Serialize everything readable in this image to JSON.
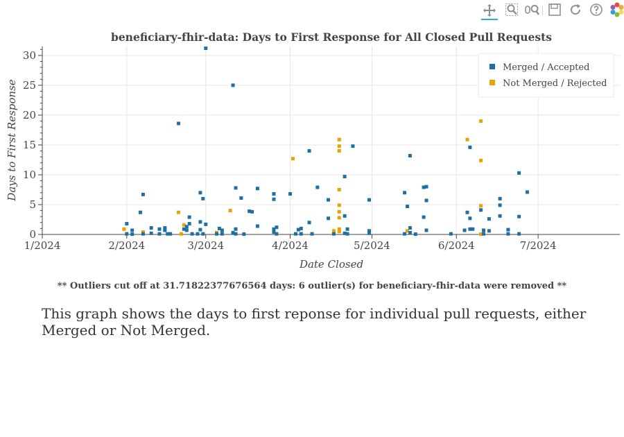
{
  "toolbar": {
    "tools": [
      {
        "name": "pan-tool",
        "icon": "pan-icon",
        "active": true
      },
      {
        "name": "box-zoom-tool",
        "icon": "box-zoom-icon",
        "active": false
      },
      {
        "name": "wheel-zoom-tool",
        "icon": "wheel-zoom-icon",
        "active": false
      },
      {
        "name": "save-tool",
        "icon": "save-icon",
        "active": false
      },
      {
        "name": "reset-tool",
        "icon": "reset-icon",
        "active": false
      },
      {
        "name": "help-tool",
        "icon": "help-icon",
        "active": false
      },
      {
        "name": "bokeh-logo",
        "icon": "bokeh-logo-icon",
        "active": false
      }
    ],
    "accent_color": "#26aae1"
  },
  "chart_data": {
    "type": "scatter",
    "title": "beneficiary-fhir-data: Days to First Response for All Closed Pull Requests",
    "xlabel": "Date Closed",
    "ylabel": "Days to First Response",
    "xlim": [
      "2024-01-01",
      "2024-07-31"
    ],
    "ylim": [
      0,
      31.5
    ],
    "x_ticks": [
      {
        "date": "2024-01-01",
        "label": "1/2024"
      },
      {
        "date": "2024-02-01",
        "label": "2/2024"
      },
      {
        "date": "2024-03-01",
        "label": "3/2024"
      },
      {
        "date": "2024-04-01",
        "label": "4/2024"
      },
      {
        "date": "2024-05-01",
        "label": "5/2024"
      },
      {
        "date": "2024-06-01",
        "label": "6/2024"
      },
      {
        "date": "2024-07-01",
        "label": "7/2024"
      }
    ],
    "y_ticks": [
      0,
      5,
      10,
      15,
      20,
      25,
      30
    ],
    "grid": true,
    "legend_position": "top-right",
    "series": [
      {
        "name": "Merged / Accepted",
        "color": "#1f6fa3",
        "points": [
          [
            "2024-02-01",
            1.8
          ],
          [
            "2024-02-01",
            0.1
          ],
          [
            "2024-02-03",
            0.7
          ],
          [
            "2024-02-03",
            0.05
          ],
          [
            "2024-02-06",
            3.7
          ],
          [
            "2024-02-07",
            6.7
          ],
          [
            "2024-02-07",
            0.1
          ],
          [
            "2024-02-10",
            1.1
          ],
          [
            "2024-02-10",
            0.2
          ],
          [
            "2024-02-13",
            0.9
          ],
          [
            "2024-02-13",
            0.1
          ],
          [
            "2024-02-15",
            1.1
          ],
          [
            "2024-02-15",
            0.7
          ],
          [
            "2024-02-16",
            0.1
          ],
          [
            "2024-02-17",
            0.1
          ],
          [
            "2024-02-20",
            18.6
          ],
          [
            "2024-02-22",
            0.9
          ],
          [
            "2024-02-23",
            1.3
          ],
          [
            "2024-02-23",
            0.7
          ],
          [
            "2024-02-24",
            2.9
          ],
          [
            "2024-02-24",
            1.8
          ],
          [
            "2024-02-25",
            0.1
          ],
          [
            "2024-02-27",
            0.1
          ],
          [
            "2024-02-28",
            7.0
          ],
          [
            "2024-02-28",
            2.1
          ],
          [
            "2024-02-28",
            0.8
          ],
          [
            "2024-02-29",
            6.0
          ],
          [
            "2024-02-29",
            0.1
          ],
          [
            "2024-03-01",
            31.2
          ],
          [
            "2024-03-01",
            1.7
          ],
          [
            "2024-03-05",
            0.1
          ],
          [
            "2024-03-06",
            1.0
          ],
          [
            "2024-03-07",
            0.7
          ],
          [
            "2024-03-07",
            0.1
          ],
          [
            "2024-03-11",
            25.0
          ],
          [
            "2024-03-11",
            0.3
          ],
          [
            "2024-03-12",
            7.8
          ],
          [
            "2024-03-12",
            0.9
          ],
          [
            "2024-03-12",
            0.1
          ],
          [
            "2024-03-14",
            6.1
          ],
          [
            "2024-03-15",
            0.05
          ],
          [
            "2024-03-17",
            3.9
          ],
          [
            "2024-03-18",
            3.8
          ],
          [
            "2024-03-20",
            7.7
          ],
          [
            "2024-03-20",
            1.4
          ],
          [
            "2024-03-26",
            6.8
          ],
          [
            "2024-03-26",
            5.9
          ],
          [
            "2024-03-26",
            0.9
          ],
          [
            "2024-03-26",
            0.4
          ],
          [
            "2024-03-27",
            1.2
          ],
          [
            "2024-03-27",
            0.1
          ],
          [
            "2024-04-01",
            6.8
          ],
          [
            "2024-04-03",
            0.1
          ],
          [
            "2024-04-04",
            0.8
          ],
          [
            "2024-04-05",
            1.0
          ],
          [
            "2024-04-05",
            0.1
          ],
          [
            "2024-04-08",
            14.0
          ],
          [
            "2024-04-08",
            2.0
          ],
          [
            "2024-04-09",
            0.1
          ],
          [
            "2024-04-11",
            7.9
          ],
          [
            "2024-04-15",
            5.8
          ],
          [
            "2024-04-15",
            2.7
          ],
          [
            "2024-04-17",
            0.1
          ],
          [
            "2024-04-21",
            9.7
          ],
          [
            "2024-04-21",
            3.1
          ],
          [
            "2024-04-21",
            0.2
          ],
          [
            "2024-04-22",
            0.9
          ],
          [
            "2024-04-22",
            0.1
          ],
          [
            "2024-04-24",
            14.8
          ],
          [
            "2024-04-30",
            5.8
          ],
          [
            "2024-04-30",
            0.6
          ],
          [
            "2024-04-30",
            0.2
          ],
          [
            "2024-05-13",
            7.0
          ],
          [
            "2024-05-13",
            0.1
          ],
          [
            "2024-05-14",
            4.7
          ],
          [
            "2024-05-15",
            13.2
          ],
          [
            "2024-05-15",
            1.1
          ],
          [
            "2024-05-15",
            0.3
          ],
          [
            "2024-05-17",
            0.05
          ],
          [
            "2024-05-20",
            7.9
          ],
          [
            "2024-05-20",
            2.9
          ],
          [
            "2024-05-21",
            8.0
          ],
          [
            "2024-05-21",
            5.7
          ],
          [
            "2024-05-21",
            0.7
          ],
          [
            "2024-05-30",
            0.1
          ],
          [
            "2024-06-04",
            0.7
          ],
          [
            "2024-06-05",
            3.7
          ],
          [
            "2024-06-06",
            14.6
          ],
          [
            "2024-06-06",
            2.7
          ],
          [
            "2024-06-06",
            0.9
          ],
          [
            "2024-06-07",
            0.9
          ],
          [
            "2024-06-10",
            4.1
          ],
          [
            "2024-06-11",
            0.7
          ],
          [
            "2024-06-11",
            0.1
          ],
          [
            "2024-06-13",
            2.6
          ],
          [
            "2024-06-13",
            0.6
          ],
          [
            "2024-06-17",
            6.0
          ],
          [
            "2024-06-17",
            4.9
          ],
          [
            "2024-06-17",
            3.1
          ],
          [
            "2024-06-20",
            0.8
          ],
          [
            "2024-06-20",
            0.1
          ],
          [
            "2024-06-24",
            10.3
          ],
          [
            "2024-06-24",
            3.0
          ],
          [
            "2024-06-24",
            0.1
          ],
          [
            "2024-06-27",
            7.1
          ]
        ]
      },
      {
        "name": "Not Merged / Rejected",
        "color": "#e8a202",
        "points": [
          [
            "2024-01-31",
            0.9
          ],
          [
            "2024-02-07",
            0.4
          ],
          [
            "2024-02-20",
            3.7
          ],
          [
            "2024-02-21",
            0.1
          ],
          [
            "2024-02-22",
            1.6
          ],
          [
            "2024-03-05",
            0.3
          ],
          [
            "2024-03-10",
            4.0
          ],
          [
            "2024-04-02",
            12.7
          ],
          [
            "2024-04-17",
            0.6
          ],
          [
            "2024-04-19",
            15.9
          ],
          [
            "2024-04-19",
            14.8
          ],
          [
            "2024-04-19",
            14.0
          ],
          [
            "2024-04-19",
            7.5
          ],
          [
            "2024-04-19",
            4.9
          ],
          [
            "2024-04-19",
            3.8
          ],
          [
            "2024-04-19",
            2.8
          ],
          [
            "2024-04-19",
            0.9
          ],
          [
            "2024-04-19",
            0.5
          ],
          [
            "2024-05-14",
            0.6
          ],
          [
            "2024-06-05",
            15.9
          ],
          [
            "2024-06-10",
            19.0
          ],
          [
            "2024-06-10",
            12.4
          ],
          [
            "2024-06-10",
            4.8
          ],
          [
            "2024-06-10",
            0.05
          ]
        ]
      }
    ]
  },
  "footer": {
    "note": "** Outliers cut off at 31.71822377676564 days: 6 outlier(s) for beneficiary-fhir-data were removed **",
    "description": "This graph shows the days to first reponse for individual pull requests, either Merged or Not Merged."
  }
}
